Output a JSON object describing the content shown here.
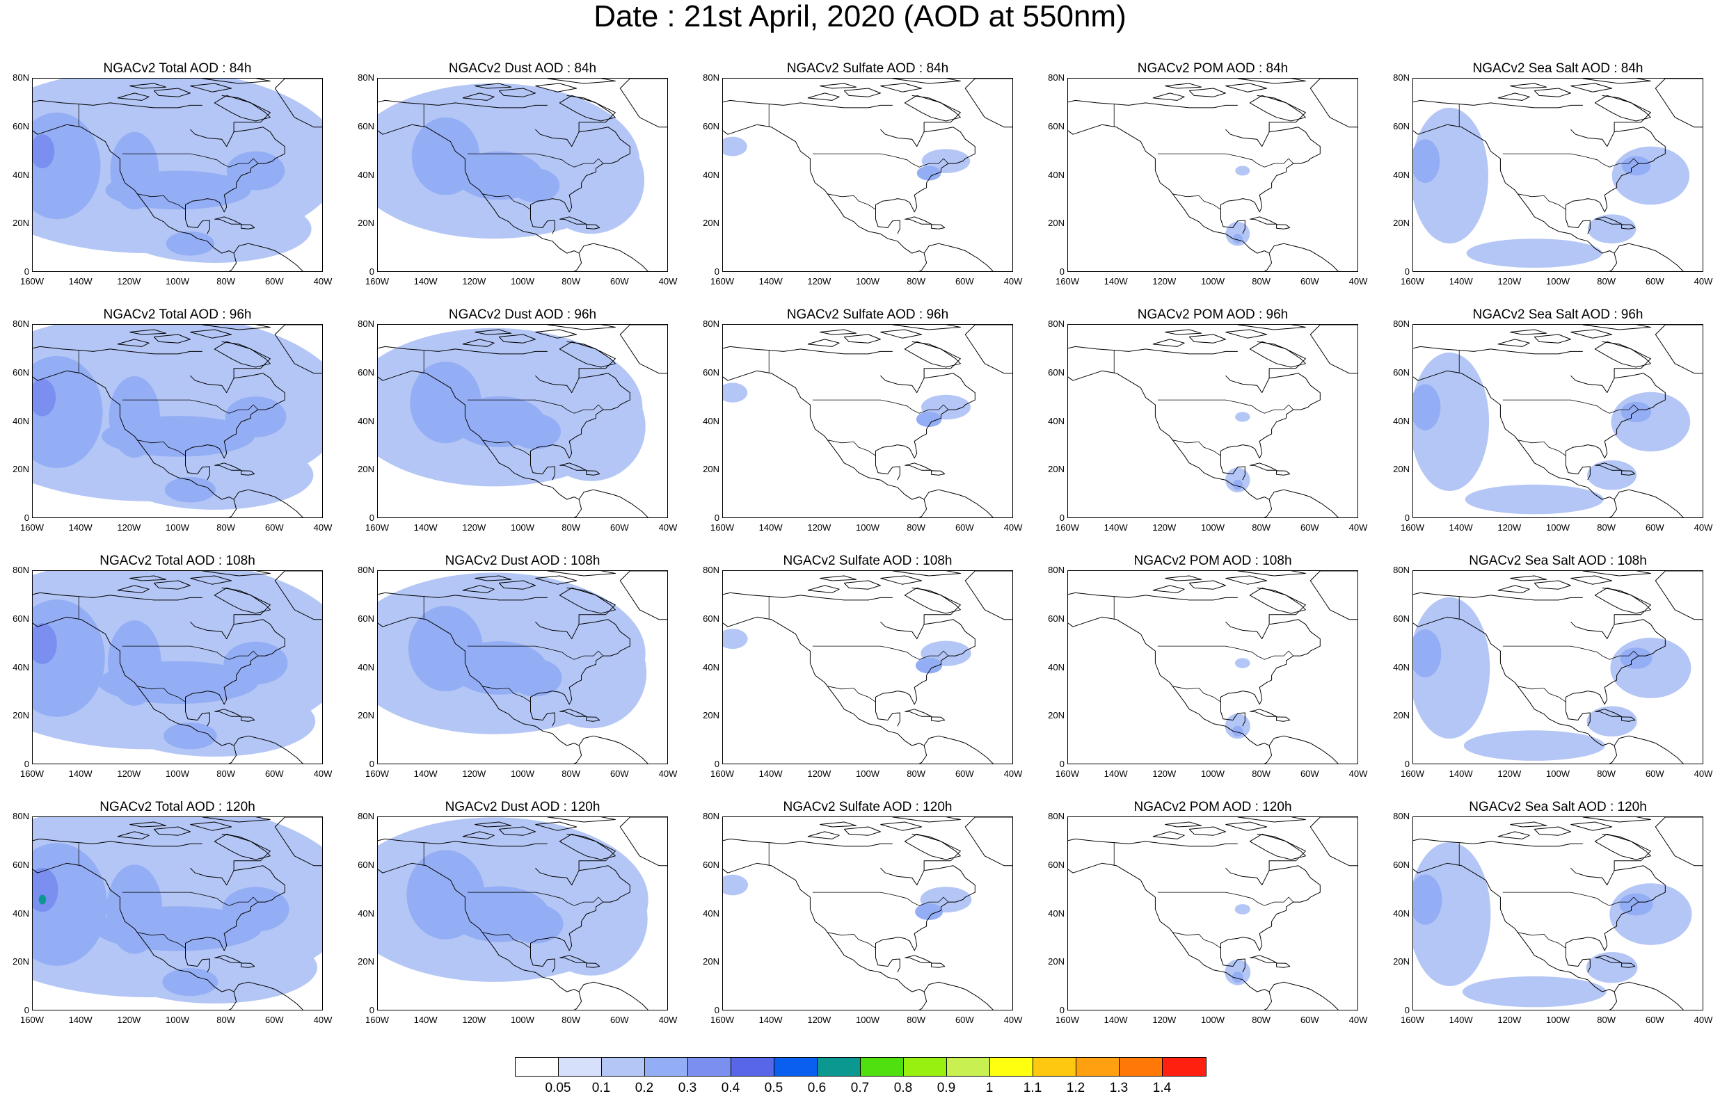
{
  "title": "Date : 21st April, 2020 (AOD at 550nm)",
  "panels": [
    {
      "title": "NGACv2 Total AOD : 84h",
      "kind": "total",
      "lead": 84
    },
    {
      "title": "NGACv2 Dust AOD : 84h",
      "kind": "dust",
      "lead": 84
    },
    {
      "title": "NGACv2 Sulfate AOD : 84h",
      "kind": "sulfate",
      "lead": 84
    },
    {
      "title": "NGACv2 POM AOD : 84h",
      "kind": "pom",
      "lead": 84
    },
    {
      "title": "NGACv2 Sea Salt AOD : 84h",
      "kind": "seasalt",
      "lead": 84
    },
    {
      "title": "NGACv2 Total AOD : 96h",
      "kind": "total",
      "lead": 96
    },
    {
      "title": "NGACv2 Dust AOD : 96h",
      "kind": "dust",
      "lead": 96
    },
    {
      "title": "NGACv2 Sulfate AOD : 96h",
      "kind": "sulfate",
      "lead": 96
    },
    {
      "title": "NGACv2 POM AOD : 96h",
      "kind": "pom",
      "lead": 96
    },
    {
      "title": "NGACv2 Sea Salt AOD : 96h",
      "kind": "seasalt",
      "lead": 96
    },
    {
      "title": "NGACv2 Total AOD : 108h",
      "kind": "total",
      "lead": 108
    },
    {
      "title": "NGACv2 Dust AOD : 108h",
      "kind": "dust",
      "lead": 108
    },
    {
      "title": "NGACv2 Sulfate AOD : 108h",
      "kind": "sulfate",
      "lead": 108
    },
    {
      "title": "NGACv2 POM AOD : 108h",
      "kind": "pom",
      "lead": 108
    },
    {
      "title": "NGACv2 Sea Salt AOD : 108h",
      "kind": "seasalt",
      "lead": 108
    },
    {
      "title": "NGACv2 Total AOD : 120h",
      "kind": "total",
      "lead": 120
    },
    {
      "title": "NGACv2 Dust AOD : 120h",
      "kind": "dust",
      "lead": 120
    },
    {
      "title": "NGACv2 Sulfate AOD : 120h",
      "kind": "sulfate",
      "lead": 120
    },
    {
      "title": "NGACv2 POM AOD : 120h",
      "kind": "pom",
      "lead": 120
    },
    {
      "title": "NGACv2 Sea Salt  AOD : 120h",
      "kind": "seasalt",
      "lead": 120
    }
  ],
  "axes": {
    "lon_ticks": [
      "160W",
      "140W",
      "120W",
      "100W",
      "80W",
      "60W",
      "40W"
    ],
    "lat_ticks": [
      "80N",
      "60N",
      "40N",
      "20N",
      "0"
    ],
    "lon_range": [
      -160,
      -40
    ],
    "lat_range": [
      0,
      80
    ]
  },
  "legend": {
    "labels": [
      "0.05",
      "0.1",
      "0.2",
      "0.3",
      "0.4",
      "0.5",
      "0.6",
      "0.7",
      "0.8",
      "0.9",
      "1",
      "1.1",
      "1.2",
      "1.3",
      "1.4"
    ],
    "colors": [
      "#ffffff",
      "#d6e0fa",
      "#b4c6f5",
      "#94aef5",
      "#7a8ff0",
      "#5866e8",
      "#0a5ef0",
      "#0a9890",
      "#50e010",
      "#98f010",
      "#c8f050",
      "#ffff10",
      "#ffc810",
      "#ffa010",
      "#ff7808",
      "#ff2010"
    ]
  }
}
